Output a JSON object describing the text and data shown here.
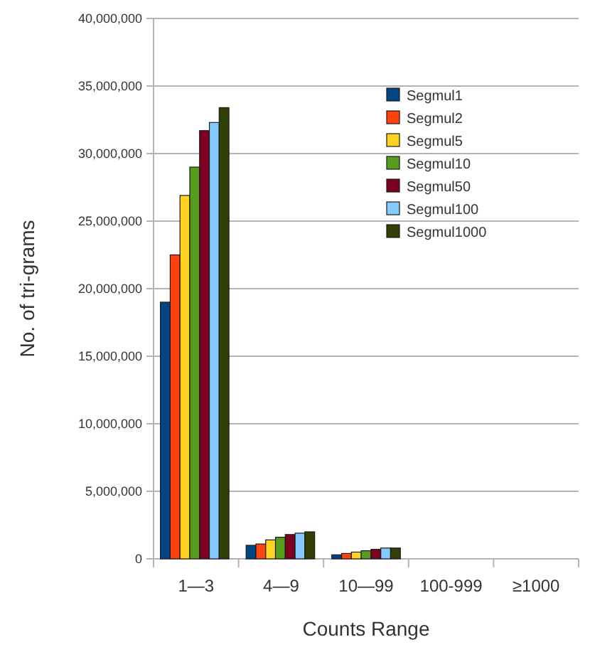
{
  "chart_data": {
    "type": "bar",
    "xlabel": "Counts Range",
    "ylabel": "No. of tri-grams",
    "categories": [
      "1—3",
      "4—9",
      "10—99",
      "100-999",
      "≥1000"
    ],
    "series": [
      {
        "name": "Segmul1",
        "color": "#004586",
        "values": [
          19000000,
          1000000,
          300000,
          0,
          0
        ]
      },
      {
        "name": "Segmul2",
        "color": "#ff420e",
        "values": [
          22500000,
          1100000,
          400000,
          0,
          0
        ]
      },
      {
        "name": "Segmul5",
        "color": "#ffd320",
        "values": [
          26900000,
          1400000,
          500000,
          0,
          0
        ]
      },
      {
        "name": "Segmul10",
        "color": "#579d1c",
        "values": [
          29000000,
          1600000,
          600000,
          0,
          0
        ]
      },
      {
        "name": "Segmul50",
        "color": "#7e0021",
        "values": [
          31700000,
          1800000,
          700000,
          0,
          0
        ]
      },
      {
        "name": "Segmul100",
        "color": "#83caff",
        "values": [
          32300000,
          1900000,
          800000,
          0,
          0
        ]
      },
      {
        "name": "Segmul1000",
        "color": "#314004",
        "values": [
          33400000,
          2000000,
          800000,
          0,
          0
        ]
      }
    ],
    "ylim": [
      0,
      40000000
    ],
    "yticks": [
      {
        "value": 0,
        "label": "0"
      },
      {
        "value": 5000000,
        "label": "5,000,000"
      },
      {
        "value": 10000000,
        "label": "10,000,000"
      },
      {
        "value": 15000000,
        "label": "15,000,000"
      },
      {
        "value": 20000000,
        "label": "20,000,000"
      },
      {
        "value": 25000000,
        "label": "25,000,000"
      },
      {
        "value": 30000000,
        "label": "30,000,000"
      },
      {
        "value": 35000000,
        "label": "35,000,000"
      },
      {
        "value": 40000000,
        "label": "40,000,000"
      }
    ],
    "grid": "y",
    "legend": "top right"
  }
}
